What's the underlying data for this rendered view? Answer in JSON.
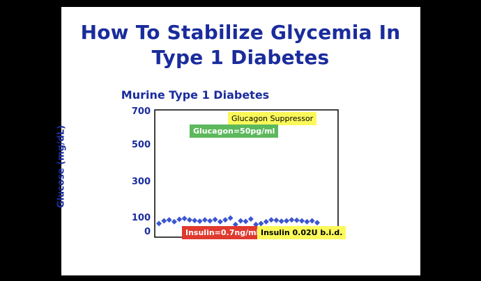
{
  "slide": {
    "title_line_1": "How To Stabilize Glycemia In",
    "title_line_2": "Type 1 Diabetes"
  },
  "chart_data": {
    "type": "scatter",
    "title": "Murine Type 1 Diabetes",
    "xlabel": "",
    "ylabel": "Glucose (mg/dL)",
    "ylim": [
      0,
      700
    ],
    "yticks": [
      0,
      100,
      300,
      500,
      700
    ],
    "grid": false,
    "marker_color": "#3b56d0",
    "annotations": [
      {
        "text": "Glucagon Suppressor",
        "color": "#fbf95a"
      },
      {
        "text": "Glucagon=50pg/ml",
        "color": "#5cb85c"
      },
      {
        "text": "Insulin=0.7ng/ml",
        "color": "#e03a2f"
      },
      {
        "text": "Insulin 0.02U b.i.d.",
        "color": "#fbf95a"
      }
    ],
    "x": [
      1,
      2,
      3,
      4,
      5,
      6,
      7,
      8,
      9,
      10,
      11,
      12,
      13,
      14,
      15,
      16,
      17,
      18,
      19,
      20,
      21,
      22,
      23,
      24,
      25,
      26,
      27,
      28,
      29,
      30,
      31,
      32
    ],
    "y": [
      75,
      90,
      95,
      85,
      98,
      103,
      95,
      92,
      88,
      95,
      90,
      97,
      85,
      95,
      105,
      70,
      90,
      87,
      100,
      70,
      75,
      85,
      95,
      93,
      88,
      90,
      95,
      93,
      90,
      85,
      90,
      80
    ]
  }
}
